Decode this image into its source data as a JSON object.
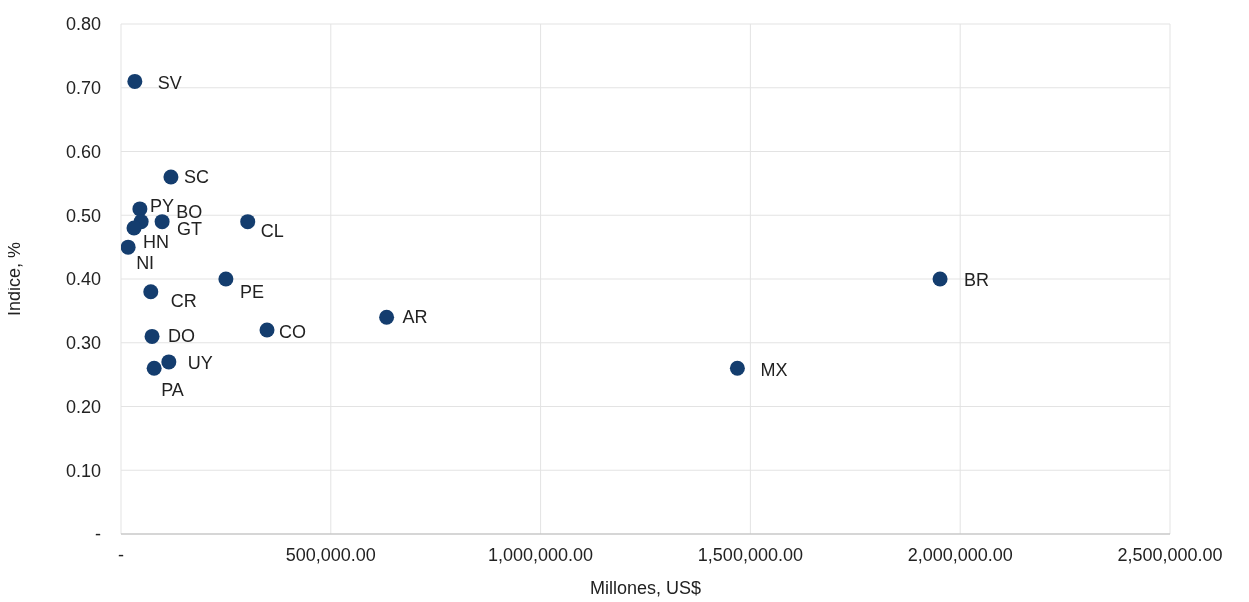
{
  "chart_data": {
    "type": "scatter",
    "xlabel": "Millones, US$",
    "ylabel": "Indice, %",
    "x": [
      33000,
      119000,
      45000,
      48000,
      98000,
      31000,
      17000,
      302000,
      250000,
      71000,
      74000,
      348000,
      114000,
      79000,
      633000,
      1469000,
      1952000
    ],
    "series": [
      {
        "color": "#143d6e",
        "values": [
          0.71,
          0.56,
          0.51,
          0.49,
          0.49,
          0.48,
          0.45,
          0.49,
          0.4,
          0.38,
          0.31,
          0.32,
          0.27,
          0.26,
          0.34,
          0.26,
          0.4
        ]
      }
    ],
    "annotations": [
      {
        "text": "SV",
        "x": 33000,
        "y": 0.71
      },
      {
        "text": "SC",
        "x": 119000,
        "y": 0.56
      },
      {
        "text": "PY",
        "x": 45000,
        "y": 0.51
      },
      {
        "text": "BO",
        "x": 48000,
        "y": 0.49
      },
      {
        "text": "GT",
        "x": 98000,
        "y": 0.49
      },
      {
        "text": "HN",
        "x": 31000,
        "y": 0.48
      },
      {
        "text": "NI",
        "x": 17000,
        "y": 0.45
      },
      {
        "text": "CL",
        "x": 302000,
        "y": 0.49
      },
      {
        "text": "PE",
        "x": 250000,
        "y": 0.4
      },
      {
        "text": "CR",
        "x": 71000,
        "y": 0.38
      },
      {
        "text": "DO",
        "x": 74000,
        "y": 0.31
      },
      {
        "text": "CO",
        "x": 348000,
        "y": 0.32
      },
      {
        "text": "UY",
        "x": 114000,
        "y": 0.27
      },
      {
        "text": "PA",
        "x": 79000,
        "y": 0.26
      },
      {
        "text": "AR",
        "x": 633000,
        "y": 0.34
      },
      {
        "text": "MX",
        "x": 1469000,
        "y": 0.26
      },
      {
        "text": "BR",
        "x": 1952000,
        "y": 0.4
      }
    ],
    "xlim": [
      0,
      2500000
    ],
    "xticks": [
      {
        "value": 0,
        "label": "-"
      },
      {
        "value": 500000,
        "label": "500,000.00"
      },
      {
        "value": 1000000,
        "label": "1,000,000.00"
      },
      {
        "value": 1500000,
        "label": "1,500,000.00"
      },
      {
        "value": 2000000,
        "label": "2,000,000.00"
      },
      {
        "value": 2500000,
        "label": "2,500,000.00"
      }
    ],
    "ylim": [
      0,
      0.8
    ],
    "yticks": [
      {
        "value": 0,
        "label": "-"
      },
      {
        "value": 0.1,
        "label": "0.10"
      },
      {
        "value": 0.2,
        "label": "0.20"
      },
      {
        "value": 0.3,
        "label": "0.30"
      },
      {
        "value": 0.4,
        "label": "0.40"
      },
      {
        "value": 0.5,
        "label": "0.50"
      },
      {
        "value": 0.6,
        "label": "0.60"
      },
      {
        "value": 0.7,
        "label": "0.70"
      },
      {
        "value": 0.8,
        "label": "0.80"
      }
    ],
    "grid": true,
    "marker": "circle",
    "legend": false
  }
}
